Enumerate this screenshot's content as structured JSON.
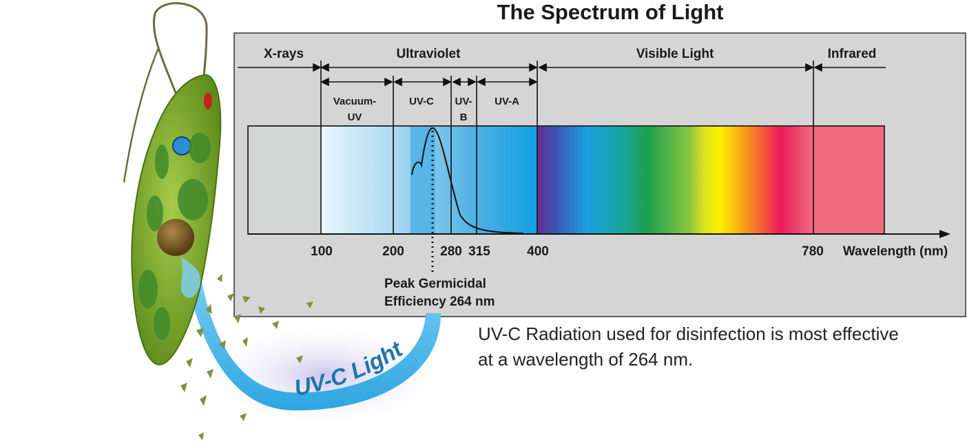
{
  "title": "The Spectrum of Light",
  "bands": {
    "xrays": "X-rays",
    "ultraviolet": "Ultraviolet",
    "visible": "Visible Light",
    "infrared": "Infrared"
  },
  "sub_bands": {
    "vacuum_uv_line1": "Vacuum-",
    "vacuum_uv_line2": "UV",
    "uvc": "UV-C",
    "uvb_line1": "UV-",
    "uvb_line2": "B",
    "uva": "UV-A"
  },
  "axis": {
    "ticks": [
      "100",
      "200",
      "280",
      "315",
      "400",
      "780"
    ],
    "label": "Wavelength (nm)"
  },
  "peak_label": {
    "line1": "Peak Germicidal",
    "line2": "Efficiency 264 nm"
  },
  "caption": {
    "line1": "UV-C Radiation used for disinfection is most effective",
    "line2": "at a wavelength of 264 nm."
  },
  "arc_label": "UV-C Light",
  "colors": {
    "panel": "#d5d5d5",
    "xray_band": "#d3d5d5",
    "uv_band": "#39a7de",
    "infrared_band": "#ef6b80",
    "organism_green": "#7aab2c"
  }
}
